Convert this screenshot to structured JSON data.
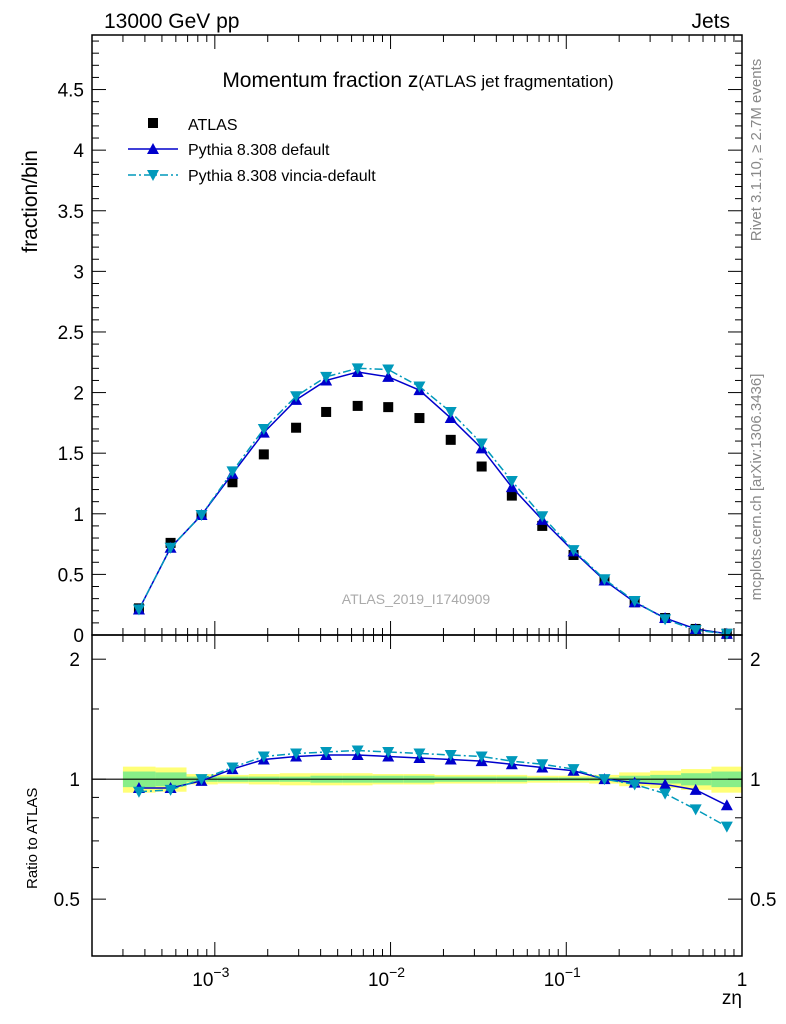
{
  "header": {
    "left": "13000 GeV pp",
    "right": "Jets",
    "side_top": "Rivet 3.1.10, ≥ 2.7M events",
    "side_bottom": "mcplots.cern.ch [arXiv:1306.3436]"
  },
  "chart_data": [
    {
      "type": "scatter",
      "panel": "main",
      "title": "Momentum fraction z",
      "title_suffix": "(ATLAS jet fragmentation)",
      "ylabel": "fraction/bin",
      "watermark": "ATLAS_2019_I1740909",
      "xscale": "log",
      "xlim": [
        0.0002,
        1
      ],
      "ylim": [
        0,
        4.95
      ],
      "yticks": [
        0,
        0.5,
        1,
        1.5,
        2,
        2.5,
        3,
        3.5,
        4,
        4.5
      ],
      "ytick_labels": [
        "0",
        "0.5",
        "1",
        "1.5",
        "2",
        "2.5",
        "3",
        "3.5",
        "4",
        "4.5"
      ],
      "legend_position": "top-left",
      "x": [
        0.00037,
        0.00056,
        0.00084,
        0.00126,
        0.0019,
        0.0029,
        0.0043,
        0.0065,
        0.0097,
        0.0146,
        0.022,
        0.033,
        0.049,
        0.073,
        0.11,
        0.165,
        0.245,
        0.365,
        0.545,
        0.82
      ],
      "series": [
        {
          "name": "ATLAS",
          "style": "data",
          "color": "#000000",
          "marker": "square",
          "values": [
            0.22,
            0.76,
            0.99,
            1.26,
            1.49,
            1.71,
            1.84,
            1.89,
            1.88,
            1.79,
            1.61,
            1.39,
            1.15,
            0.9,
            0.66,
            0.45,
            0.27,
            0.14,
            0.05,
            0.01
          ]
        },
        {
          "name": "Pythia 8.308 default",
          "style": "solid",
          "color": "#0000cc",
          "marker": "triangle-up",
          "values": [
            0.21,
            0.72,
            0.99,
            1.33,
            1.67,
            1.94,
            2.1,
            2.17,
            2.13,
            2.02,
            1.79,
            1.54,
            1.22,
            0.95,
            0.69,
            0.45,
            0.27,
            0.14,
            0.05,
            0.01
          ]
        },
        {
          "name": "Pythia 8.308 vincia-default",
          "style": "dashdot",
          "color": "#0099bb",
          "marker": "triangle-down",
          "values": [
            0.21,
            0.72,
            0.99,
            1.35,
            1.7,
            1.97,
            2.13,
            2.2,
            2.19,
            2.05,
            1.84,
            1.58,
            1.27,
            0.98,
            0.7,
            0.46,
            0.28,
            0.13,
            0.04,
            0.01
          ]
        }
      ]
    },
    {
      "type": "line",
      "panel": "ratio",
      "xlabel": "zη",
      "ylabel": "Ratio to ATLAS",
      "xscale": "log",
      "xlim": [
        0.0002,
        1
      ],
      "ylim": [
        0.36,
        2.3
      ],
      "yticks": [
        0.5,
        1,
        2
      ],
      "ytick_labels": [
        "0.5",
        "1",
        "2"
      ],
      "xtick_labels": [
        {
          "base": "10",
          "exp": "−3",
          "value": 0.001
        },
        {
          "base": "10",
          "exp": "−2",
          "value": 0.01
        },
        {
          "base": "10",
          "exp": "−1",
          "value": 0.1
        },
        {
          "base": "1",
          "exp": "",
          "value": 1
        }
      ],
      "band_edges": [
        0.0003,
        0.00046,
        0.00069,
        0.00104,
        0.00156,
        0.00234,
        0.0035,
        0.0053,
        0.0079,
        0.0119,
        0.0178,
        0.0267,
        0.04,
        0.06,
        0.09,
        0.135,
        0.2,
        0.3,
        0.45,
        0.67,
        1.0
      ],
      "band_stat_half": [
        0.045,
        0.04,
        0.015,
        0.015,
        0.015,
        0.015,
        0.02,
        0.02,
        0.02,
        0.02,
        0.015,
        0.015,
        0.015,
        0.01,
        0.01,
        0.01,
        0.02,
        0.025,
        0.035,
        0.045
      ],
      "band_total_half": [
        0.075,
        0.07,
        0.03,
        0.025,
        0.03,
        0.035,
        0.035,
        0.035,
        0.03,
        0.03,
        0.025,
        0.025,
        0.025,
        0.02,
        0.02,
        0.025,
        0.04,
        0.05,
        0.06,
        0.075
      ],
      "band_stat_color": "#88ee88",
      "band_total_color": "#ffff77",
      "x": [
        0.00037,
        0.00056,
        0.00084,
        0.00126,
        0.0019,
        0.0029,
        0.0043,
        0.0065,
        0.0097,
        0.0146,
        0.022,
        0.033,
        0.049,
        0.073,
        0.11,
        0.165,
        0.245,
        0.365,
        0.545,
        0.82
      ],
      "series": [
        {
          "name": "Pythia 8.308 default",
          "style": "solid",
          "color": "#0000cc",
          "marker": "triangle-up",
          "values": [
            0.95,
            0.95,
            0.99,
            1.06,
            1.12,
            1.14,
            1.15,
            1.15,
            1.14,
            1.13,
            1.12,
            1.11,
            1.09,
            1.07,
            1.05,
            1.0,
            0.98,
            0.97,
            0.94,
            0.86
          ]
        },
        {
          "name": "Pythia 8.308 vincia-default",
          "style": "dashdot",
          "color": "#0099bb",
          "marker": "triangle-down",
          "values": [
            0.93,
            0.94,
            1.0,
            1.07,
            1.14,
            1.16,
            1.17,
            1.18,
            1.17,
            1.16,
            1.15,
            1.14,
            1.11,
            1.09,
            1.06,
            1.0,
            0.97,
            0.92,
            0.84,
            0.76
          ]
        }
      ]
    }
  ]
}
